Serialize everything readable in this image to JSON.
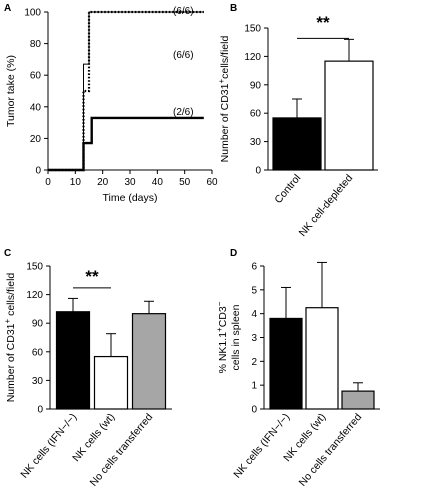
{
  "chart_data": [
    {
      "panel": "A",
      "type": "line",
      "xlabel": "Time (days)",
      "ylabel": "Tumor take (%)",
      "xlim": [
        0,
        60
      ],
      "ylim": [
        0,
        100
      ],
      "xticks": [
        0,
        10,
        20,
        30,
        40,
        50,
        60
      ],
      "yticks": [
        0,
        20,
        40,
        60,
        80,
        100
      ],
      "series": [
        {
          "style": "solid-thin",
          "label": "(6/6)",
          "x": [
            0,
            13,
            13,
            15,
            15,
            57
          ],
          "y": [
            0,
            0,
            67,
            67,
            100,
            100
          ]
        },
        {
          "style": "dotted",
          "label": "(6/6)",
          "x": [
            0,
            13,
            13,
            15,
            15,
            57
          ],
          "y": [
            0,
            0,
            50,
            50,
            100,
            100
          ]
        },
        {
          "style": "solid-thick",
          "label": "(2/6)",
          "x": [
            0,
            13,
            13,
            16,
            16,
            57
          ],
          "y": [
            0,
            0,
            17,
            17,
            33,
            33
          ]
        }
      ]
    },
    {
      "panel": "B",
      "type": "bar",
      "ylabel_pre": "Number of CD31",
      "ylabel_sup": "+",
      "ylabel_post": "cells/field",
      "ylim": [
        0,
        150
      ],
      "yticks": [
        0,
        30,
        60,
        90,
        120,
        150
      ],
      "categories": [
        "Control",
        "NK cell-depleted"
      ],
      "values": [
        55,
        115
      ],
      "errors": [
        20,
        23
      ],
      "colors": [
        "#000000",
        "#ffffff"
      ],
      "significance": "**"
    },
    {
      "panel": "C",
      "type": "bar",
      "ylabel_pre": "Number of CD31",
      "ylabel_sup": "+",
      "ylabel_post": " cells/field",
      "ylim": [
        0,
        150
      ],
      "yticks": [
        0,
        30,
        60,
        90,
        120,
        150
      ],
      "categories": [
        "NK cells (IFN−/−)",
        "NK cells (wt)",
        "No cells transferred"
      ],
      "values": [
        102,
        55,
        100
      ],
      "errors": [
        14,
        24,
        13
      ],
      "colors": [
        "#000000",
        "#ffffff",
        "#a6a6a6"
      ],
      "significance": "**"
    },
    {
      "panel": "D",
      "type": "bar",
      "ylabel_line1_pre": "% NK1.1",
      "ylabel_line1_sup1": "+",
      "ylabel_line1_mid": "CD3",
      "ylabel_line1_sup2": "−",
      "ylabel_line2": "cells in spleen",
      "ylim": [
        0,
        6
      ],
      "yticks": [
        0,
        1,
        2,
        3,
        4,
        5,
        6
      ],
      "categories": [
        "NK cells (IFN−/−)",
        "NK cells (wt)",
        "No cells transferred"
      ],
      "values": [
        3.8,
        4.25,
        0.75
      ],
      "errors": [
        1.3,
        1.9,
        0.35
      ],
      "colors": [
        "#000000",
        "#ffffff",
        "#a6a6a6"
      ]
    }
  ]
}
